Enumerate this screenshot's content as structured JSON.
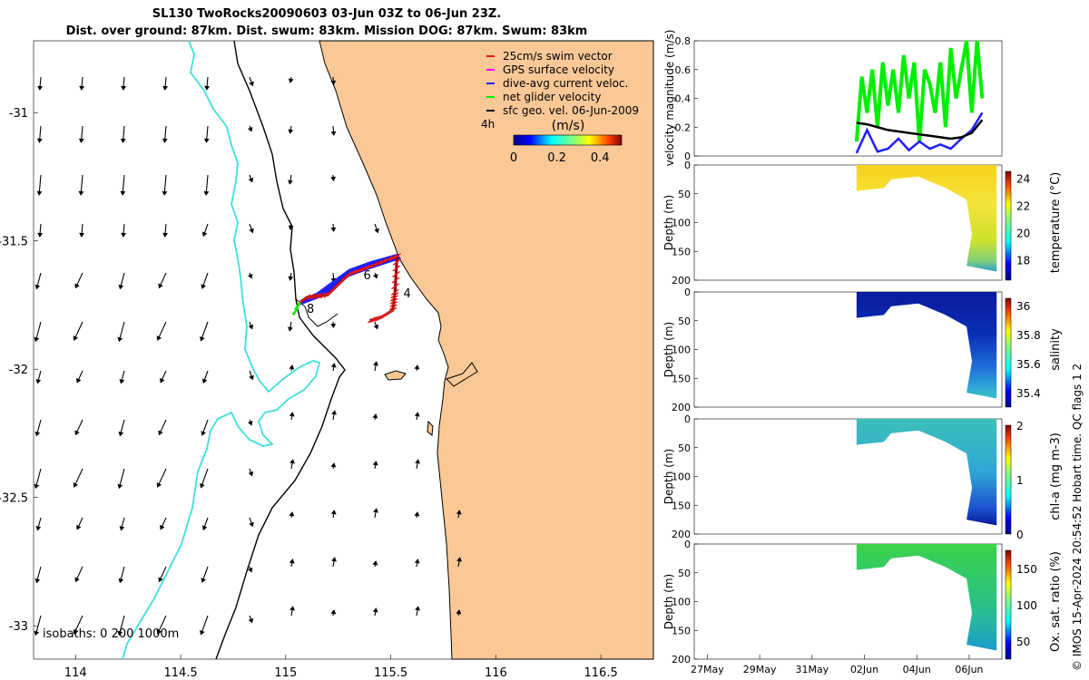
{
  "title_line1": "SL130 TwoRocks20090603 03-Jun 03Z to 06-Jun 23Z.",
  "title_line2": "Dist. over ground: 87km. Dist. swum: 83km. Mission DOG: 87km. Swum: 83km",
  "credit": "© IMOS 15-Apr-2024 20:54:52 Hobart time. QC flags 1  2",
  "colors": {
    "land": "#f9c896",
    "coast": "#000000",
    "isobath_200": "#000000",
    "isobath_1000": "#3fdede",
    "swim": "#e41a1c",
    "gps": "#ff00ff",
    "current": "#1f1fff",
    "net": "#00ee00",
    "geo": "#000000"
  },
  "chart_data": [
    {
      "type": "map",
      "xlim": [
        113.8,
        116.75
      ],
      "ylim": [
        -33.13,
        -30.72
      ],
      "x_ticks": [
        "114",
        "114.5",
        "115",
        "115.5",
        "116",
        "116.5"
      ],
      "y_ticks": [
        "-31",
        "-31.5",
        "-32",
        "-32.5",
        "-33"
      ],
      "legend": {
        "placement": "top-right",
        "entries": [
          {
            "label": "25cm/s swim vector",
            "color": "#e41a1c"
          },
          {
            "label": "GPS surface velocity",
            "color": "#ff00ff"
          },
          {
            "label": "dive-avg current veloc.",
            "color": "#1f1fff"
          },
          {
            "label": "net glider velocity",
            "color": "#00ee00"
          },
          {
            "label": "sfc geo. vel. 06-Jun-2009",
            "color": "#000000"
          }
        ]
      },
      "colorbar": {
        "label": "(m/s)",
        "ticks": [
          "0",
          "0.2",
          "0.4"
        ],
        "range": [
          0,
          0.5
        ],
        "side_label": "4h"
      },
      "isobaths_label": "isobaths: 0   200  1000m",
      "track_labels": [
        {
          "text": "6",
          "lon": 115.37,
          "lat": -31.65
        },
        {
          "text": "4",
          "lon": 115.56,
          "lat": -31.72
        },
        {
          "text": "8",
          "lon": 115.1,
          "lat": -31.78
        }
      ],
      "track": [
        [
          115.07,
          -31.74
        ],
        [
          115.1,
          -31.72
        ],
        [
          115.2,
          -31.71
        ],
        [
          115.3,
          -31.63
        ],
        [
          115.4,
          -31.6
        ],
        [
          115.53,
          -31.56
        ],
        [
          115.52,
          -31.7
        ],
        [
          115.51,
          -31.77
        ],
        [
          115.45,
          -31.8
        ],
        [
          115.4,
          -31.81
        ]
      ],
      "current_band": [
        [
          115.07,
          -31.73
        ],
        [
          115.15,
          -31.7
        ],
        [
          115.3,
          -31.61
        ],
        [
          115.4,
          -31.58
        ],
        [
          115.53,
          -31.55
        ],
        [
          115.55,
          -31.57
        ],
        [
          115.4,
          -31.61
        ],
        [
          115.3,
          -31.64
        ],
        [
          115.2,
          -31.71
        ],
        [
          115.07,
          -31.75
        ]
      ]
    },
    {
      "type": "line",
      "ylabel": "velocity magnitude (m/s)",
      "ylim": [
        0,
        0.8
      ],
      "y_ticks": [
        "0",
        "0.2",
        "0.4",
        "0.6",
        "0.8"
      ],
      "series": [
        {
          "color": "#00ee00",
          "x": [
            6.2,
            6.4,
            6.6,
            6.8,
            7.0,
            7.2,
            7.4,
            7.6,
            7.8,
            8.0,
            8.2,
            8.4,
            8.6,
            8.8,
            9.0,
            9.2,
            9.4,
            9.6,
            9.8,
            10.0,
            10.2,
            10.4,
            10.6,
            10.8,
            11.0
          ],
          "y": [
            0.1,
            0.55,
            0.3,
            0.6,
            0.2,
            0.65,
            0.35,
            0.6,
            0.3,
            0.7,
            0.4,
            0.65,
            0.1,
            0.6,
            0.5,
            0.3,
            0.65,
            0.2,
            0.75,
            0.4,
            0.6,
            0.8,
            0.3,
            0.8,
            0.4
          ]
        },
        {
          "color": "#1f1fff",
          "x": [
            6.2,
            6.6,
            7.0,
            7.4,
            7.8,
            8.2,
            8.6,
            9.0,
            9.4,
            9.8,
            10.2,
            10.6,
            11.0
          ],
          "y": [
            0.02,
            0.18,
            0.03,
            0.05,
            0.12,
            0.04,
            0.1,
            0.05,
            0.08,
            0.05,
            0.12,
            0.18,
            0.3
          ]
        },
        {
          "color": "#000000",
          "x": [
            6.2,
            6.6,
            7.0,
            7.4,
            7.8,
            8.2,
            8.6,
            9.0,
            9.4,
            9.8,
            10.2,
            10.6,
            11.0
          ],
          "y": [
            0.23,
            0.22,
            0.2,
            0.18,
            0.17,
            0.16,
            0.15,
            0.14,
            0.13,
            0.12,
            0.13,
            0.16,
            0.25
          ]
        }
      ]
    },
    {
      "type": "heatmap",
      "ylabel": "Depth (m)",
      "cbar_label": "temperature (°C)",
      "ylim": [
        0,
        200
      ],
      "y_ticks": [
        "0",
        "50",
        "100",
        "150",
        "200"
      ],
      "cbar_ticks": [
        "18",
        "20",
        "22",
        "24"
      ],
      "cbar_range": [
        16.5,
        24.5
      ]
    },
    {
      "type": "heatmap",
      "ylabel": "Depth (m)",
      "cbar_label": "salinity",
      "ylim": [
        0,
        200
      ],
      "y_ticks": [
        "0",
        "50",
        "100",
        "150",
        "200"
      ],
      "cbar_ticks": [
        "35.4",
        "35.6",
        "35.8",
        "36"
      ],
      "cbar_range": [
        35.3,
        36.05
      ]
    },
    {
      "type": "heatmap",
      "ylabel": "Depth (m)",
      "cbar_label": "chl-a (mg m-3)",
      "ylim": [
        0,
        200
      ],
      "y_ticks": [
        "0",
        "50",
        "100",
        "150",
        "200"
      ],
      "cbar_ticks": [
        "0",
        "1",
        "2"
      ],
      "cbar_range": [
        0,
        2
      ]
    },
    {
      "type": "heatmap",
      "ylabel": "Depth (m)",
      "cbar_label": "Ox. sat. ratio (%)",
      "ylim": [
        0,
        200
      ],
      "y_ticks": [
        "0",
        "50",
        "100",
        "150",
        "200"
      ],
      "cbar_ticks": [
        "50",
        "100",
        "150"
      ],
      "cbar_range": [
        25,
        175
      ]
    },
    {
      "type": "time_axis",
      "x_ticks": [
        "27May",
        "29May",
        "31May",
        "02Jun",
        "04Jun",
        "06Jun"
      ],
      "xlim": [
        26.0,
        7.2
      ]
    }
  ]
}
